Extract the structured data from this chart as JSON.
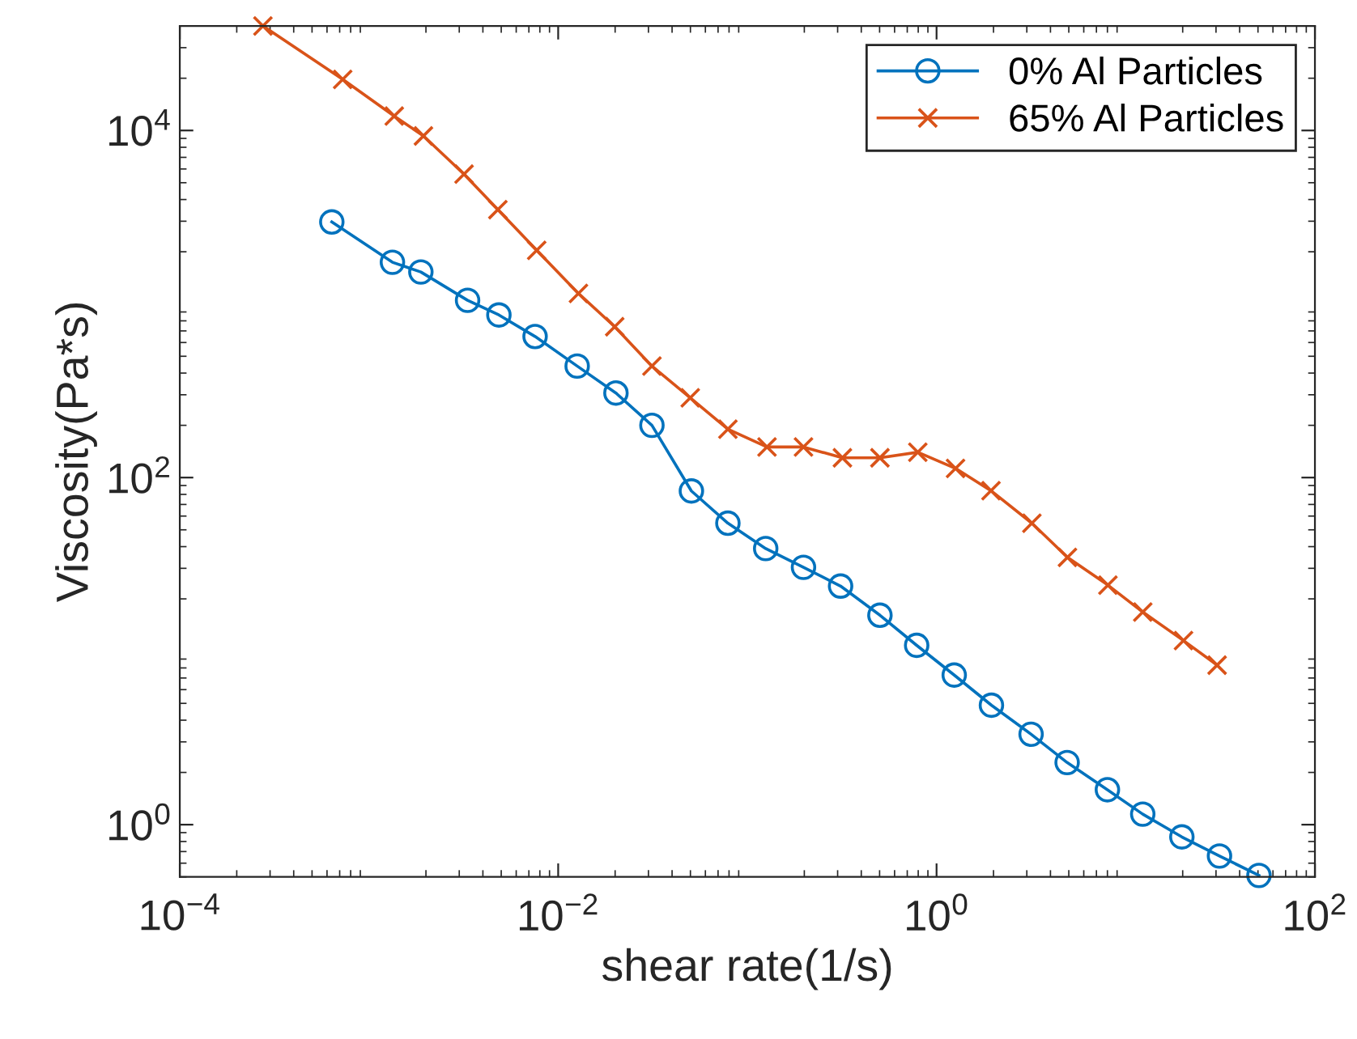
{
  "chart_data": {
    "type": "line",
    "xlabel": "shear rate(1/s)",
    "ylabel": "Viscosity(Pa*s)",
    "log": "xy",
    "grid": false,
    "legend": "top right",
    "line_style": "solid",
    "xlim": [
      0.0001,
      100
    ],
    "xticks": [
      {
        "value": 0.0001,
        "label": "10$^{−4}$"
      },
      {
        "value": 0.01,
        "label": "10$^{−2}$"
      },
      {
        "value": 1,
        "label": "10$^{0}$"
      },
      {
        "value": 100,
        "label": "10$^{2}$"
      }
    ],
    "ylim": [
      0.5,
      40000
    ],
    "yticks": [
      {
        "value": 1,
        "label": "10$^{0}$"
      },
      {
        "value": 100,
        "label": "10$^{2}$"
      },
      {
        "value": 10000,
        "label": "10$^{4}$"
      }
    ],
    "series": [
      {
        "name": "0% Al Particles",
        "color": "#0072bd",
        "marker": "circle",
        "x": [
          0.000636,
          0.00133,
          0.00188,
          0.00332,
          0.00486,
          0.00755,
          0.0126,
          0.0202,
          0.0313,
          0.0506,
          0.0789,
          0.125,
          0.198,
          0.311,
          0.502,
          0.785,
          1.24,
          1.95,
          3.16,
          4.9,
          8.0,
          12.3,
          19.8,
          31.3,
          50.6
        ],
        "values": [
          2970,
          1740,
          1530,
          1050,
          865,
          650,
          439,
          307,
          200,
          83.7,
          54.6,
          39,
          30.4,
          23.7,
          16.1,
          10.8,
          7.28,
          4.88,
          3.32,
          2.28,
          1.59,
          1.15,
          0.85,
          0.66,
          0.51
        ]
      },
      {
        "name": "65% Al Particles",
        "color": "#d95319",
        "marker": "cross",
        "x": [
          0.000275,
          0.000726,
          0.00136,
          0.00194,
          0.00318,
          0.0048,
          0.0077,
          0.0128,
          0.0199,
          0.0313,
          0.0499,
          0.0789,
          0.127,
          0.198,
          0.318,
          0.502,
          0.796,
          1.26,
          1.94,
          3.19,
          4.92,
          8.05,
          12.3,
          20.2,
          30.4
        ],
        "values": [
          40000,
          19700,
          12100,
          9300,
          5600,
          3500,
          2040,
          1150,
          740,
          439,
          288,
          190,
          150,
          150,
          130,
          130,
          140,
          113,
          84,
          54.6,
          34.7,
          24,
          16.8,
          11.5,
          8.3
        ]
      }
    ]
  }
}
